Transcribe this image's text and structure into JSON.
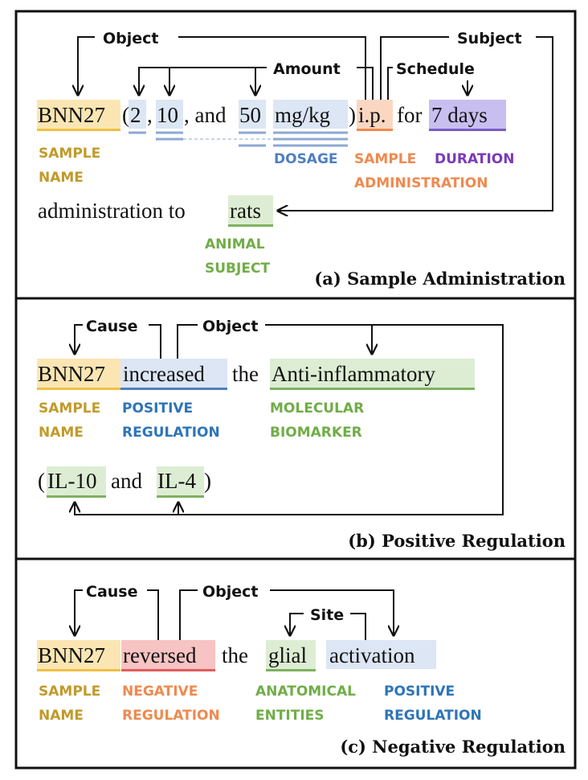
{
  "colors": {
    "sample": "#fbe6b3",
    "sample_line": "#f0c044",
    "sample_text": "#c19a2a",
    "blue": "#dce6f4",
    "blue_line": "#8ea9d3",
    "blue_text": "#4f7fc0",
    "orange": "#fbd7c2",
    "orange_line": "#ee8a4f",
    "orange_text": "#ee8a4f",
    "purple": "#c9bef0",
    "purple_line": "#7a5cc7",
    "purple_text": "#7a3ab7",
    "green": "#ddedd3",
    "green_line": "#7fb160",
    "green_text": "#70ad47",
    "pos_text": "#2e75b6",
    "red": "#f7c3c3",
    "red_line": "#e05c5c",
    "red_text": "#ee8a4f"
  },
  "panel_a": {
    "caption": "(a) Sample Administration",
    "relations": {
      "object": "Object",
      "amount": "Amount",
      "subject": "Subject",
      "schedule": "Schedule"
    },
    "tokens": {
      "bnn27": "BNN27",
      "open_paren": "(",
      "n2": "2",
      "comma1": ",",
      "n10": "10",
      "comma_and": ", and",
      "n50": "50",
      "unit": "mg/kg",
      "close_paren": ")",
      "ip": "i.p.",
      "for": "for",
      "days": "7 days",
      "administration_to": "administration to",
      "rats": "rats"
    },
    "labels": {
      "sample_name_1": "SAMPLE",
      "sample_name_2": "NAME",
      "dosage": "DOSAGE",
      "sample_admin_1": "SAMPLE",
      "sample_admin_2": "ADMINISTRATION",
      "duration": "DURATION",
      "animal_1": "ANIMAL",
      "animal_2": "SUBJECT"
    }
  },
  "panel_b": {
    "caption": "(b) Positive Regulation",
    "relations": {
      "cause": "Cause",
      "object": "Object"
    },
    "tokens": {
      "bnn27": "BNN27",
      "increased": "increased",
      "the": "the",
      "antiinflammatory": "Anti-inflammatory",
      "open_paren": "(",
      "il10": "IL-10",
      "and": "and",
      "il4": "IL-4",
      "close_paren": ")"
    },
    "labels": {
      "sample_name_1": "SAMPLE",
      "sample_name_2": "NAME",
      "pos_1": "POSITIVE",
      "pos_2": "REGULATION",
      "mol_1": "MOLECULAR",
      "mol_2": "BIOMARKER"
    }
  },
  "panel_c": {
    "caption": "(c) Negative Regulation",
    "relations": {
      "cause": "Cause",
      "object": "Object",
      "site": "Site"
    },
    "tokens": {
      "bnn27": "BNN27",
      "reversed": "reversed",
      "the": "the",
      "glial": "glial",
      "activation": "activation"
    },
    "labels": {
      "sample_name_1": "SAMPLE",
      "sample_name_2": "NAME",
      "neg_1": "NEGATIVE",
      "neg_2": "REGULATION",
      "anat_1": "ANATOMICAL",
      "anat_2": "ENTITIES",
      "pos_1": "POSITIVE",
      "pos_2": "REGULATION"
    }
  }
}
